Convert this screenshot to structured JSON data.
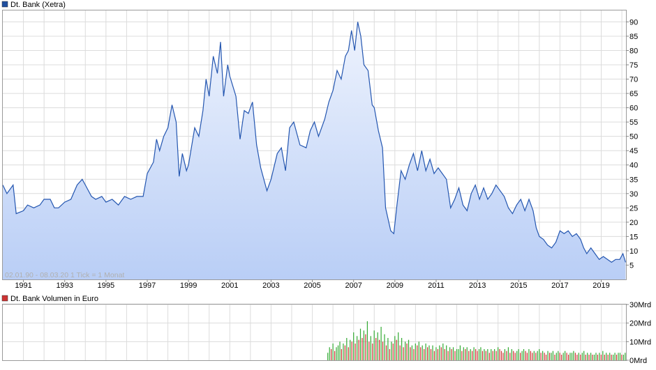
{
  "price_legend": {
    "label": "Dt. Bank (Xetra)",
    "color": "#1f4f9f"
  },
  "volume_legend": {
    "label": "Dt. Bank Volumen in Euro",
    "color": "#cc3333"
  },
  "watermark": "02.01.90 - 08.03.20   1 Tick = 1 Monat",
  "colors": {
    "line": "#2456b0",
    "fill_top": "#eef3fd",
    "fill_bottom": "#b9cef6",
    "grid": "#dcdcdc",
    "vol_up": "#33aa33",
    "vol_down": "#cc3333"
  },
  "chart_data": [
    {
      "type": "area",
      "series": [
        {
          "name": "Dt. Bank (Xetra)",
          "points": [
            [
              1990.0,
              33
            ],
            [
              1990.2,
              30
            ],
            [
              1990.5,
              33
            ],
            [
              1990.65,
              23
            ],
            [
              1991.0,
              24
            ],
            [
              1991.2,
              26
            ],
            [
              1991.5,
              25
            ],
            [
              1991.8,
              26
            ],
            [
              1992.0,
              28
            ],
            [
              1992.3,
              28
            ],
            [
              1992.5,
              25
            ],
            [
              1992.7,
              25
            ],
            [
              1993.0,
              27
            ],
            [
              1993.3,
              28
            ],
            [
              1993.6,
              33
            ],
            [
              1993.85,
              35
            ],
            [
              1994.0,
              33
            ],
            [
              1994.3,
              29
            ],
            [
              1994.5,
              28
            ],
            [
              1994.8,
              29
            ],
            [
              1995.0,
              27
            ],
            [
              1995.3,
              28
            ],
            [
              1995.6,
              26
            ],
            [
              1995.9,
              29
            ],
            [
              1996.2,
              28
            ],
            [
              1996.5,
              29
            ],
            [
              1996.8,
              29
            ],
            [
              1997.0,
              37
            ],
            [
              1997.3,
              41
            ],
            [
              1997.45,
              49
            ],
            [
              1997.6,
              45
            ],
            [
              1997.8,
              50
            ],
            [
              1998.0,
              53
            ],
            [
              1998.2,
              61
            ],
            [
              1998.4,
              55
            ],
            [
              1998.55,
              36
            ],
            [
              1998.7,
              44
            ],
            [
              1998.9,
              38
            ],
            [
              1999.0,
              40
            ],
            [
              1999.3,
              53
            ],
            [
              1999.5,
              50
            ],
            [
              1999.7,
              59
            ],
            [
              1999.85,
              70
            ],
            [
              2000.0,
              64
            ],
            [
              2000.2,
              78
            ],
            [
              2000.4,
              72
            ],
            [
              2000.55,
              83
            ],
            [
              2000.7,
              64
            ],
            [
              2000.9,
              75
            ],
            [
              2001.0,
              71
            ],
            [
              2001.3,
              64
            ],
            [
              2001.5,
              49
            ],
            [
              2001.7,
              59
            ],
            [
              2001.9,
              58
            ],
            [
              2002.1,
              62
            ],
            [
              2002.3,
              47
            ],
            [
              2002.5,
              39
            ],
            [
              2002.8,
              31
            ],
            [
              2003.0,
              35
            ],
            [
              2003.3,
              44
            ],
            [
              2003.5,
              46
            ],
            [
              2003.7,
              38
            ],
            [
              2003.9,
              53
            ],
            [
              2004.1,
              55
            ],
            [
              2004.4,
              47
            ],
            [
              2004.7,
              46
            ],
            [
              2004.9,
              52
            ],
            [
              2005.1,
              55
            ],
            [
              2005.3,
              50
            ],
            [
              2005.6,
              56
            ],
            [
              2005.8,
              62
            ],
            [
              2006.0,
              66
            ],
            [
              2006.2,
              73
            ],
            [
              2006.4,
              70
            ],
            [
              2006.6,
              78
            ],
            [
              2006.75,
              80
            ],
            [
              2006.9,
              87
            ],
            [
              2007.05,
              80
            ],
            [
              2007.2,
              90
            ],
            [
              2007.35,
              85
            ],
            [
              2007.5,
              75
            ],
            [
              2007.7,
              73
            ],
            [
              2007.9,
              61
            ],
            [
              2008.0,
              60
            ],
            [
              2008.2,
              52
            ],
            [
              2008.4,
              46
            ],
            [
              2008.55,
              25
            ],
            [
              2008.8,
              17
            ],
            [
              2008.95,
              16
            ],
            [
              2009.1,
              26
            ],
            [
              2009.3,
              38
            ],
            [
              2009.5,
              35
            ],
            [
              2009.7,
              40
            ],
            [
              2009.9,
              44
            ],
            [
              2010.1,
              38
            ],
            [
              2010.3,
              45
            ],
            [
              2010.5,
              38
            ],
            [
              2010.7,
              42
            ],
            [
              2010.9,
              37
            ],
            [
              2011.1,
              39
            ],
            [
              2011.3,
              37
            ],
            [
              2011.5,
              35
            ],
            [
              2011.7,
              25
            ],
            [
              2011.9,
              28
            ],
            [
              2012.1,
              32
            ],
            [
              2012.3,
              26
            ],
            [
              2012.5,
              24
            ],
            [
              2012.7,
              30
            ],
            [
              2012.9,
              33
            ],
            [
              2013.1,
              28
            ],
            [
              2013.3,
              32
            ],
            [
              2013.5,
              28
            ],
            [
              2013.7,
              30
            ],
            [
              2013.9,
              33
            ],
            [
              2014.1,
              31
            ],
            [
              2014.3,
              29
            ],
            [
              2014.5,
              25
            ],
            [
              2014.7,
              23
            ],
            [
              2014.9,
              26
            ],
            [
              2015.1,
              28
            ],
            [
              2015.3,
              24
            ],
            [
              2015.5,
              28
            ],
            [
              2015.7,
              24
            ],
            [
              2015.85,
              18
            ],
            [
              2016.0,
              15
            ],
            [
              2016.2,
              14
            ],
            [
              2016.4,
              12
            ],
            [
              2016.6,
              11
            ],
            [
              2016.8,
              13
            ],
            [
              2017.0,
              17
            ],
            [
              2017.2,
              16
            ],
            [
              2017.4,
              17
            ],
            [
              2017.6,
              15
            ],
            [
              2017.8,
              16
            ],
            [
              2018.0,
              14
            ],
            [
              2018.15,
              11
            ],
            [
              2018.3,
              9
            ],
            [
              2018.5,
              11
            ],
            [
              2018.7,
              9
            ],
            [
              2018.9,
              7
            ],
            [
              2019.1,
              8
            ],
            [
              2019.3,
              7
            ],
            [
              2019.5,
              6
            ],
            [
              2019.7,
              7
            ],
            [
              2019.9,
              7
            ],
            [
              2020.05,
              9
            ],
            [
              2020.18,
              6
            ]
          ]
        }
      ],
      "x_range": [
        1990.0,
        2020.2
      ],
      "ylim": [
        0,
        94
      ],
      "y_ticks": [
        5,
        10,
        15,
        20,
        25,
        30,
        35,
        40,
        45,
        50,
        55,
        60,
        65,
        70,
        75,
        80,
        85,
        90
      ],
      "x_ticks": [
        "1991",
        "1993",
        "1995",
        "1997",
        "1999",
        "2001",
        "2003",
        "2005",
        "2007",
        "2009",
        "2011",
        "2013",
        "2015",
        "2017",
        "2019"
      ],
      "grid": true
    },
    {
      "type": "bar",
      "series": [
        {
          "name": "Dt. Bank Volumen in Euro",
          "start_year": 2005.75,
          "bar_interval_years": 0.0833,
          "values": [
            4,
            7,
            6,
            9,
            5,
            7,
            8,
            10,
            6,
            9,
            8,
            12,
            7,
            11,
            10,
            15,
            9,
            13,
            11,
            17,
            12,
            16,
            14,
            21,
            10,
            13,
            9,
            16,
            12,
            15,
            11,
            18,
            10,
            14,
            8,
            12,
            6,
            10,
            9,
            13,
            11,
            15,
            8,
            12,
            7,
            10,
            9,
            11,
            7,
            8,
            6,
            9,
            8,
            10,
            7,
            8,
            6,
            9,
            7,
            8,
            6,
            8,
            5,
            7,
            6,
            8,
            7,
            9,
            6,
            8,
            5,
            7,
            6,
            7,
            5,
            6,
            6,
            8,
            5,
            7,
            6,
            7,
            5,
            6,
            5,
            7,
            6,
            5,
            6,
            7,
            5,
            6,
            5,
            6,
            4,
            6,
            5,
            6,
            5,
            7,
            6,
            5,
            4,
            6,
            5,
            7,
            4,
            6,
            5,
            4,
            5,
            6,
            4,
            5,
            6,
            5,
            4,
            6,
            5,
            4,
            5,
            4,
            5,
            6,
            4,
            5,
            4,
            3,
            5,
            4,
            4,
            5,
            3,
            4,
            5,
            4,
            3,
            4,
            5,
            4,
            3,
            4,
            4,
            5,
            4,
            3,
            4,
            3,
            4,
            5,
            3,
            4,
            3,
            4,
            3,
            3,
            4,
            3,
            4,
            3,
            5,
            3,
            4,
            3,
            4,
            3,
            3,
            4,
            3,
            4,
            4,
            3,
            3,
            4,
            3,
            4
          ]
        }
      ],
      "ylim": [
        0,
        30
      ],
      "y_ticks": [
        "0Mrd",
        "10Mrd",
        "20Mrd",
        "30Mrd"
      ],
      "grid": true
    }
  ]
}
